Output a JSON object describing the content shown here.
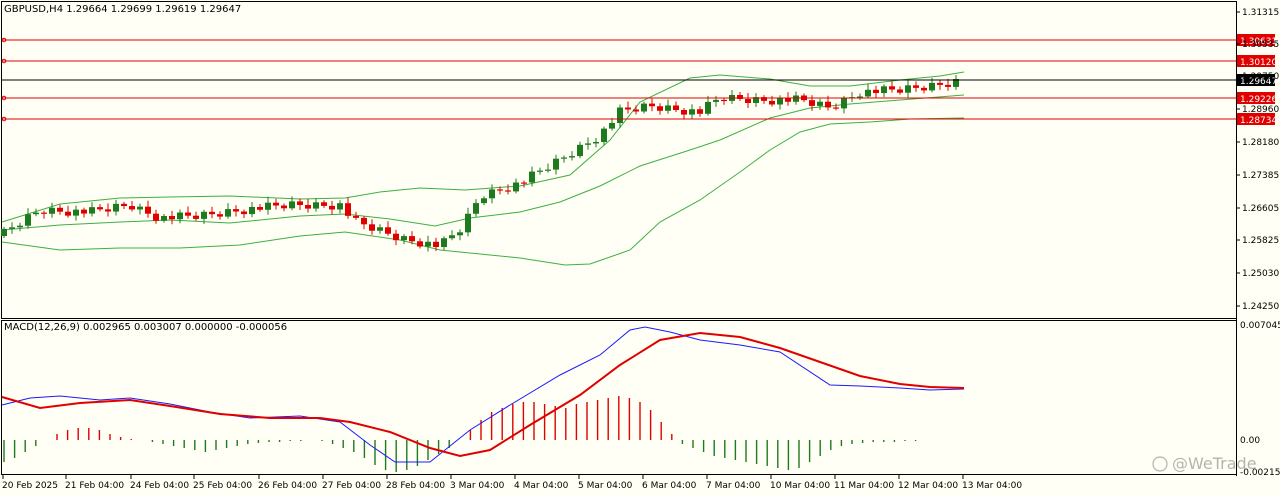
{
  "main_chart": {
    "header": "GBPUSD,H4  1.29664 1.29699 1.29619 1.29647",
    "price_axis": [
      "1.31315",
      "1.30535",
      "1.29750",
      "1.28960",
      "1.28180",
      "1.27385",
      "1.26605",
      "1.25825",
      "1.25030",
      "1.24250"
    ],
    "levels": [
      {
        "label": "1.30631",
        "color": "#e00000"
      },
      {
        "label": "1.30120",
        "color": "#e00000"
      },
      {
        "label": "1.29226",
        "color": "#e00000"
      },
      {
        "label": "1.28734",
        "color": "#e00000"
      }
    ],
    "current_price": {
      "label": "1.29647",
      "color": "#000000"
    },
    "colors": {
      "bull": "#1e7a1e",
      "bear": "#e00000",
      "band": "#3cb043",
      "level": "#e00000"
    }
  },
  "macd": {
    "header": "MACD(12,26,9) 0.002965 0.003007 0.000000 -0.000056",
    "axis": [
      "0.007045",
      "0.00",
      "-0.002155"
    ],
    "colors": {
      "main": "#1a1aff",
      "signal": "#e00000",
      "hist_pos": "#e00000",
      "hist_neg": "#1e7a1e"
    }
  },
  "time_axis": [
    "20 Feb 2025",
    "21 Feb 04:00",
    "24 Feb 04:00",
    "25 Feb 04:00",
    "26 Feb 04:00",
    "27 Feb 04:00",
    "28 Feb 04:00",
    "3 Mar 04:00",
    "4 Mar 04:00",
    "5 Mar 04:00",
    "6 Mar 04:00",
    "7 Mar 04:00",
    "10 Mar 04:00",
    "11 Mar 04:00",
    "12 Mar 04:00",
    "13 Mar 04:00"
  ],
  "watermark": "@WeTrade"
}
